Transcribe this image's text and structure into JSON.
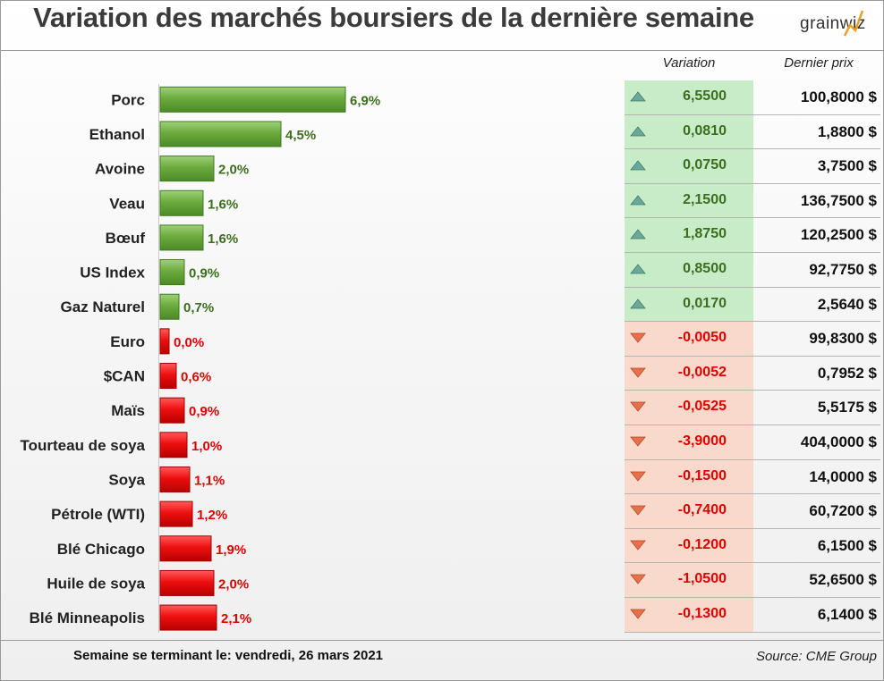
{
  "header": {
    "title": "Variation des marchés boursiers de la dernière semaine",
    "logo_text": "grainwiz"
  },
  "columns": {
    "variation": "Variation",
    "last_price": "Dernier prix"
  },
  "footer": {
    "week_label": "Semaine se terminant le:  vendredi, 26 mars 2021",
    "source": "Source: CME Group"
  },
  "colors": {
    "up_bar": "#6cab3d",
    "down_bar": "#ee1010",
    "up_text": "#3b6e1e",
    "down_text": "#e00000",
    "up_cell": "#c8ecc8",
    "down_cell": "#f8d9cc"
  },
  "chart_data": {
    "type": "bar",
    "orientation": "horizontal",
    "categories": [
      "Porc",
      "Ethanol",
      "Avoine",
      "Veau",
      "Bœuf",
      "US Index",
      "Gaz Naturel",
      "Euro",
      "$CAN",
      "Maïs",
      "Tourteau de soya",
      "Soya",
      "Pétrole (WTI)",
      "Blé Chicago",
      "Huile de soya",
      "Blé Minneapolis"
    ],
    "values": [
      6.9,
      4.5,
      2.0,
      1.6,
      1.6,
      0.9,
      0.7,
      0.0,
      -0.6,
      -0.9,
      -1.0,
      -1.1,
      -1.2,
      -1.9,
      -2.0,
      -2.1
    ],
    "value_labels": [
      "6,9%",
      "4,5%",
      "2,0%",
      "1,6%",
      "1,6%",
      "0,9%",
      "0,7%",
      "0,0%",
      "0,6%",
      "0,9%",
      "1,0%",
      "1,1%",
      "1,2%",
      "1,9%",
      "2,0%",
      "2,1%"
    ],
    "note": "bars drawn by absolute magnitude; green = up, red = down"
  },
  "table": {
    "rows": [
      {
        "direction": "up",
        "variation": "6,5500",
        "price": "100,8000 $"
      },
      {
        "direction": "up",
        "variation": "0,0810",
        "price": "1,8800 $"
      },
      {
        "direction": "up",
        "variation": "0,0750",
        "price": "3,7500 $"
      },
      {
        "direction": "up",
        "variation": "2,1500",
        "price": "136,7500 $"
      },
      {
        "direction": "up",
        "variation": "1,8750",
        "price": "120,2500 $"
      },
      {
        "direction": "up",
        "variation": "0,8500",
        "price": "92,7750 $"
      },
      {
        "direction": "up",
        "variation": "0,0170",
        "price": "2,5640 $"
      },
      {
        "direction": "down",
        "variation": "-0,0050",
        "price": "99,8300 $"
      },
      {
        "direction": "down",
        "variation": "-0,0052",
        "price": "0,7952 $"
      },
      {
        "direction": "down",
        "variation": "-0,0525",
        "price": "5,5175 $"
      },
      {
        "direction": "down",
        "variation": "-3,9000",
        "price": "404,0000 $"
      },
      {
        "direction": "down",
        "variation": "-0,1500",
        "price": "14,0000 $"
      },
      {
        "direction": "down",
        "variation": "-0,7400",
        "price": "60,7200 $"
      },
      {
        "direction": "down",
        "variation": "-0,1200",
        "price": "6,1500 $"
      },
      {
        "direction": "down",
        "variation": "-1,0500",
        "price": "52,6500 $"
      },
      {
        "direction": "down",
        "variation": "-0,1300",
        "price": "6,1400 $"
      }
    ]
  }
}
